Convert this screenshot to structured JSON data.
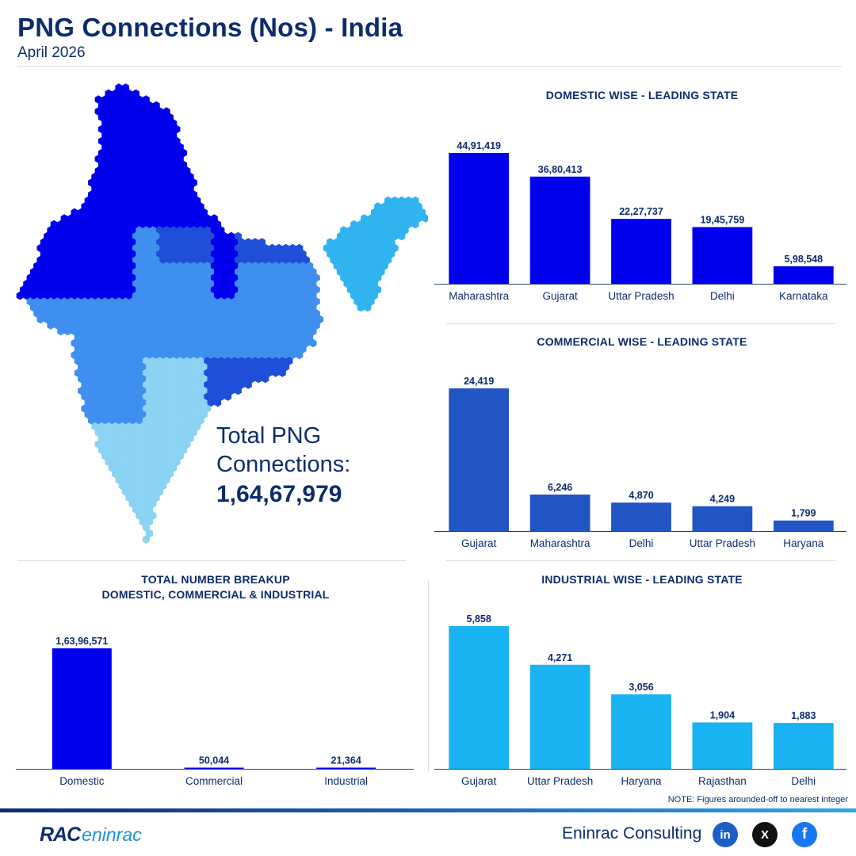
{
  "header": {
    "title": "PNG Connections (Nos) - India",
    "subtitle": "April 2026"
  },
  "map": {
    "total_label_line1": "Total PNG",
    "total_label_line2": "Connections:",
    "total_value": "1,64,67,979",
    "colors": [
      "#0000ee",
      "#1f4fd8",
      "#3f8ff0",
      "#2fb4f0",
      "#8ad3f2"
    ]
  },
  "chart_data": [
    {
      "id": "domestic",
      "type": "bar",
      "title": "DOMESTIC WISE - LEADING STATE",
      "color": "#0000ee",
      "categories": [
        "Maharashtra",
        "Gujarat",
        "Uttar Pradesh",
        "Delhi",
        "Karnataka"
      ],
      "values": [
        4491419,
        3680413,
        2227737,
        1945759,
        598548
      ],
      "value_labels": [
        "44,91,419",
        "36,80,413",
        "22,27,737",
        "19,45,759",
        "5,98,548"
      ]
    },
    {
      "id": "commercial",
      "type": "bar",
      "title": "COMMERCIAL WISE - LEADING STATE",
      "color": "#2255c4",
      "categories": [
        "Gujarat",
        "Maharashtra",
        "Delhi",
        "Uttar Pradesh",
        "Haryana"
      ],
      "values": [
        24419,
        6246,
        4870,
        4249,
        1799
      ],
      "value_labels": [
        "24,419",
        "6,246",
        "4,870",
        "4,249",
        "1,799"
      ]
    },
    {
      "id": "breakup",
      "type": "bar",
      "title": "TOTAL NUMBER BREAKUP",
      "subtitle": "DOMESTIC, COMMERCIAL & INDUSTRIAL",
      "color": "#0000ee",
      "categories": [
        "Domestic",
        "Commercial",
        "Industrial"
      ],
      "values": [
        16396571,
        50044,
        21364
      ],
      "value_labels": [
        "1,63,96,571",
        "50,044",
        "21,364"
      ]
    },
    {
      "id": "industrial",
      "type": "bar",
      "title": "INDUSTRIAL WISE - LEADING STATE",
      "color": "#19b2f2",
      "categories": [
        "Gujarat",
        "Uttar Pradesh",
        "Haryana",
        "Rajasthan",
        "Delhi"
      ],
      "values": [
        5858,
        4271,
        3056,
        1904,
        1883
      ],
      "value_labels": [
        "5,858",
        "4,271",
        "3,056",
        "1,904",
        "1,883"
      ]
    }
  ],
  "footer": {
    "note": "NOTE: Figures arounded-off to nearest integer",
    "brand": "Eninrac Consulting",
    "logo_mark": "RAC",
    "logo_text": "eninrac",
    "social": [
      {
        "icon": "linkedin-icon",
        "glyph": "in",
        "color": "#1d5fc4"
      },
      {
        "icon": "x-twitter-icon",
        "glyph": "X",
        "color": "#111111"
      },
      {
        "icon": "facebook-icon",
        "glyph": "f",
        "color": "#1877f2"
      }
    ]
  }
}
